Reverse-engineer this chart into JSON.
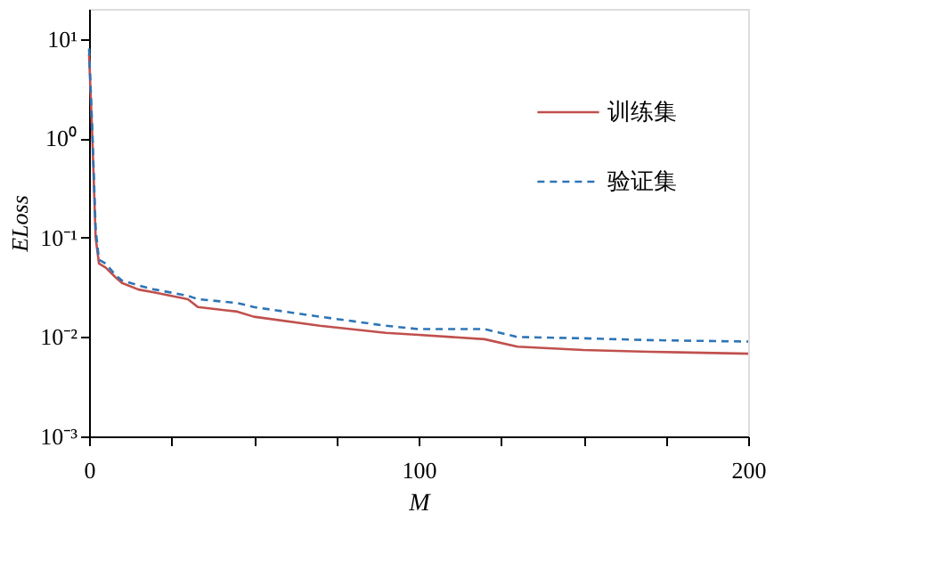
{
  "chart_data": {
    "type": "line",
    "xlabel": "M",
    "ylabel": "ELoss",
    "log": "y",
    "grid": false,
    "legend": "top right",
    "marker": "none",
    "xlim": [
      0,
      200
    ],
    "xticks": [
      0,
      {
        "value": 25,
        "label": null
      },
      {
        "value": 50,
        "label": null
      },
      {
        "value": 75,
        "label": null
      },
      100,
      {
        "value": 125,
        "label": null
      },
      {
        "value": 150,
        "label": null
      },
      {
        "value": 175,
        "label": null
      },
      200
    ],
    "ylim": [
      0.001,
      20
    ],
    "yticks": [
      {
        "value": 0.001,
        "label": "10⁻³"
      },
      {
        "value": 0.01,
        "label": "10⁻²"
      },
      {
        "value": 0.1,
        "label": "10⁻¹"
      },
      {
        "value": 1,
        "label": "10⁰"
      },
      {
        "value": 10,
        "label": "10¹"
      }
    ],
    "series": [
      {
        "name": "训练集",
        "color": "#c0504d",
        "line_style": "solid",
        "x": [
          0,
          1,
          2,
          3,
          5,
          8,
          10,
          15,
          20,
          30,
          33,
          45,
          50,
          70,
          90,
          100,
          120,
          130,
          150,
          170,
          200
        ],
        "values": [
          7,
          1,
          0.1,
          0.055,
          0.05,
          0.04,
          0.035,
          0.03,
          0.028,
          0.024,
          0.02,
          0.018,
          0.016,
          0.013,
          0.011,
          0.0105,
          0.0095,
          0.008,
          0.0074,
          0.0071,
          0.0068
        ]
      },
      {
        "name": "验证集",
        "color": "#2e75b6",
        "line_style": "dashed",
        "x": [
          0,
          1,
          2,
          3,
          5,
          8,
          10,
          15,
          20,
          30,
          33,
          45,
          50,
          70,
          90,
          100,
          120,
          130,
          150,
          170,
          200
        ],
        "values": [
          8,
          1.2,
          0.12,
          0.06,
          0.055,
          0.042,
          0.037,
          0.033,
          0.03,
          0.026,
          0.024,
          0.022,
          0.02,
          0.016,
          0.013,
          0.012,
          0.012,
          0.01,
          0.0097,
          0.0093,
          0.009
        ]
      }
    ]
  }
}
